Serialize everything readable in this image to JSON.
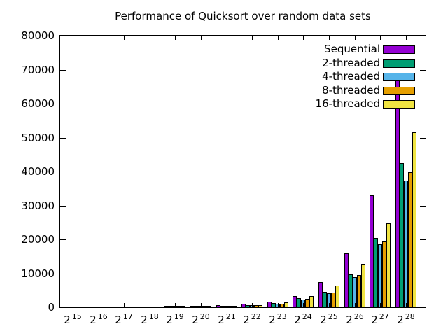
{
  "chart_data": {
    "type": "bar",
    "title": "Performance of Quicksort over random data sets",
    "categories": [
      "2^15",
      "2^16",
      "2^17",
      "2^18",
      "2^19",
      "2^20",
      "2^21",
      "2^22",
      "2^23",
      "2^24",
      "2^25",
      "2^26",
      "2^27",
      "2^28"
    ],
    "series": [
      {
        "name": "Sequential",
        "color": "#9400d3",
        "values": [
          10,
          20,
          40,
          80,
          170,
          350,
          560,
          950,
          1650,
          3400,
          7500,
          15800,
          33000,
          67700
        ]
      },
      {
        "name": "2-threaded",
        "color": "#009e73",
        "values": [
          8,
          15,
          30,
          60,
          120,
          250,
          380,
          640,
          1300,
          2700,
          4500,
          9700,
          20400,
          42500
        ]
      },
      {
        "name": "4-threaded",
        "color": "#56b4e9",
        "values": [
          8,
          15,
          30,
          55,
          110,
          230,
          350,
          560,
          950,
          2250,
          4150,
          8900,
          18500,
          37400
        ]
      },
      {
        "name": "8-threaded",
        "color": "#e69f00",
        "values": [
          8,
          15,
          30,
          55,
          110,
          230,
          360,
          580,
          1000,
          2400,
          4400,
          9500,
          19400,
          39800
        ]
      },
      {
        "name": "16-threaded",
        "color": "#f0e442",
        "values": [
          8,
          15,
          30,
          60,
          120,
          260,
          400,
          700,
          1500,
          3300,
          6400,
          12700,
          24800,
          51500
        ]
      }
    ],
    "ylim": [
      0,
      80000
    ],
    "ytick_step": 10000,
    "ytick_labels": [
      "0",
      "10000",
      "20000",
      "30000",
      "40000",
      "50000",
      "60000",
      "70000",
      "80000"
    ],
    "xlabel": "",
    "ylabel": "",
    "grid": false,
    "legend_position": "top-right-inside",
    "axis_color": "#000000",
    "background_color": "#ffffff"
  }
}
